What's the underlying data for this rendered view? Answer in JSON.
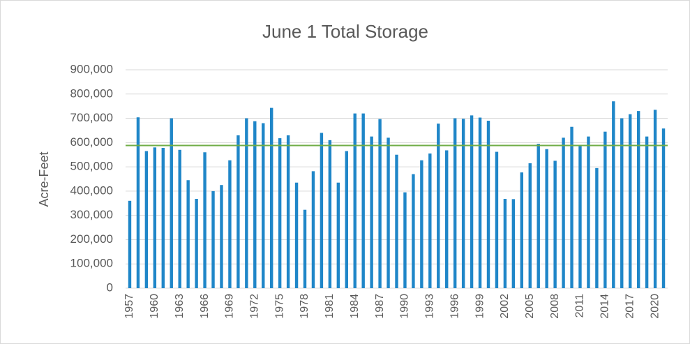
{
  "chart_data": {
    "type": "bar",
    "title": "June 1 Total Storage",
    "y_label": "Acre-Feet",
    "categories": [
      "1957",
      null,
      null,
      "1960",
      null,
      null,
      "1963",
      null,
      null,
      "1966",
      null,
      null,
      "1969",
      null,
      null,
      "1972",
      null,
      null,
      "1975",
      null,
      null,
      "1978",
      null,
      null,
      "1981",
      null,
      null,
      "1984",
      null,
      null,
      "1987",
      null,
      null,
      "1990",
      null,
      null,
      "1993",
      null,
      null,
      "1996",
      null,
      null,
      "1999",
      null,
      null,
      "2002",
      null,
      null,
      "2005",
      null,
      null,
      "2008",
      null,
      null,
      "2011",
      null,
      null,
      "2014",
      null,
      null,
      "2017",
      null,
      null,
      "2020",
      null
    ],
    "values": [
      360000,
      704000,
      565000,
      580000,
      578000,
      700000,
      570000,
      445000,
      368000,
      560000,
      400000,
      425000,
      527000,
      630000,
      700000,
      688000,
      680000,
      743000,
      618000,
      630000,
      435000,
      323000,
      482000,
      640000,
      610000,
      435000,
      565000,
      720000,
      720000,
      625000,
      697000,
      620000,
      550000,
      395000,
      470000,
      527000,
      555000,
      678000,
      568000,
      700000,
      698000,
      712000,
      703000,
      690000,
      562000,
      368000,
      367000,
      477000,
      515000,
      595000,
      573000,
      525000,
      620000,
      665000,
      585000,
      625000,
      495000,
      645000,
      770000,
      700000,
      717000,
      730000,
      625000,
      735000,
      658000
    ],
    "color": "#1f86c8",
    "reference_line": {
      "value": 588000,
      "color": "#70ad47"
    },
    "ylim": [
      0,
      900000
    ],
    "yticks": [
      0,
      {
        "value": 100000,
        "label": "100,000"
      },
      {
        "value": 200000,
        "label": "200,000"
      },
      {
        "value": 300000,
        "label": "300,000"
      },
      {
        "value": 400000,
        "label": "400,000"
      },
      {
        "value": 500000,
        "label": "500,000"
      },
      {
        "value": 600000,
        "label": "600,000"
      },
      {
        "value": 700000,
        "label": "700,000"
      },
      {
        "value": 800000,
        "label": "800,000"
      },
      {
        "value": 900000,
        "label": "900,000"
      }
    ],
    "grid": true
  }
}
